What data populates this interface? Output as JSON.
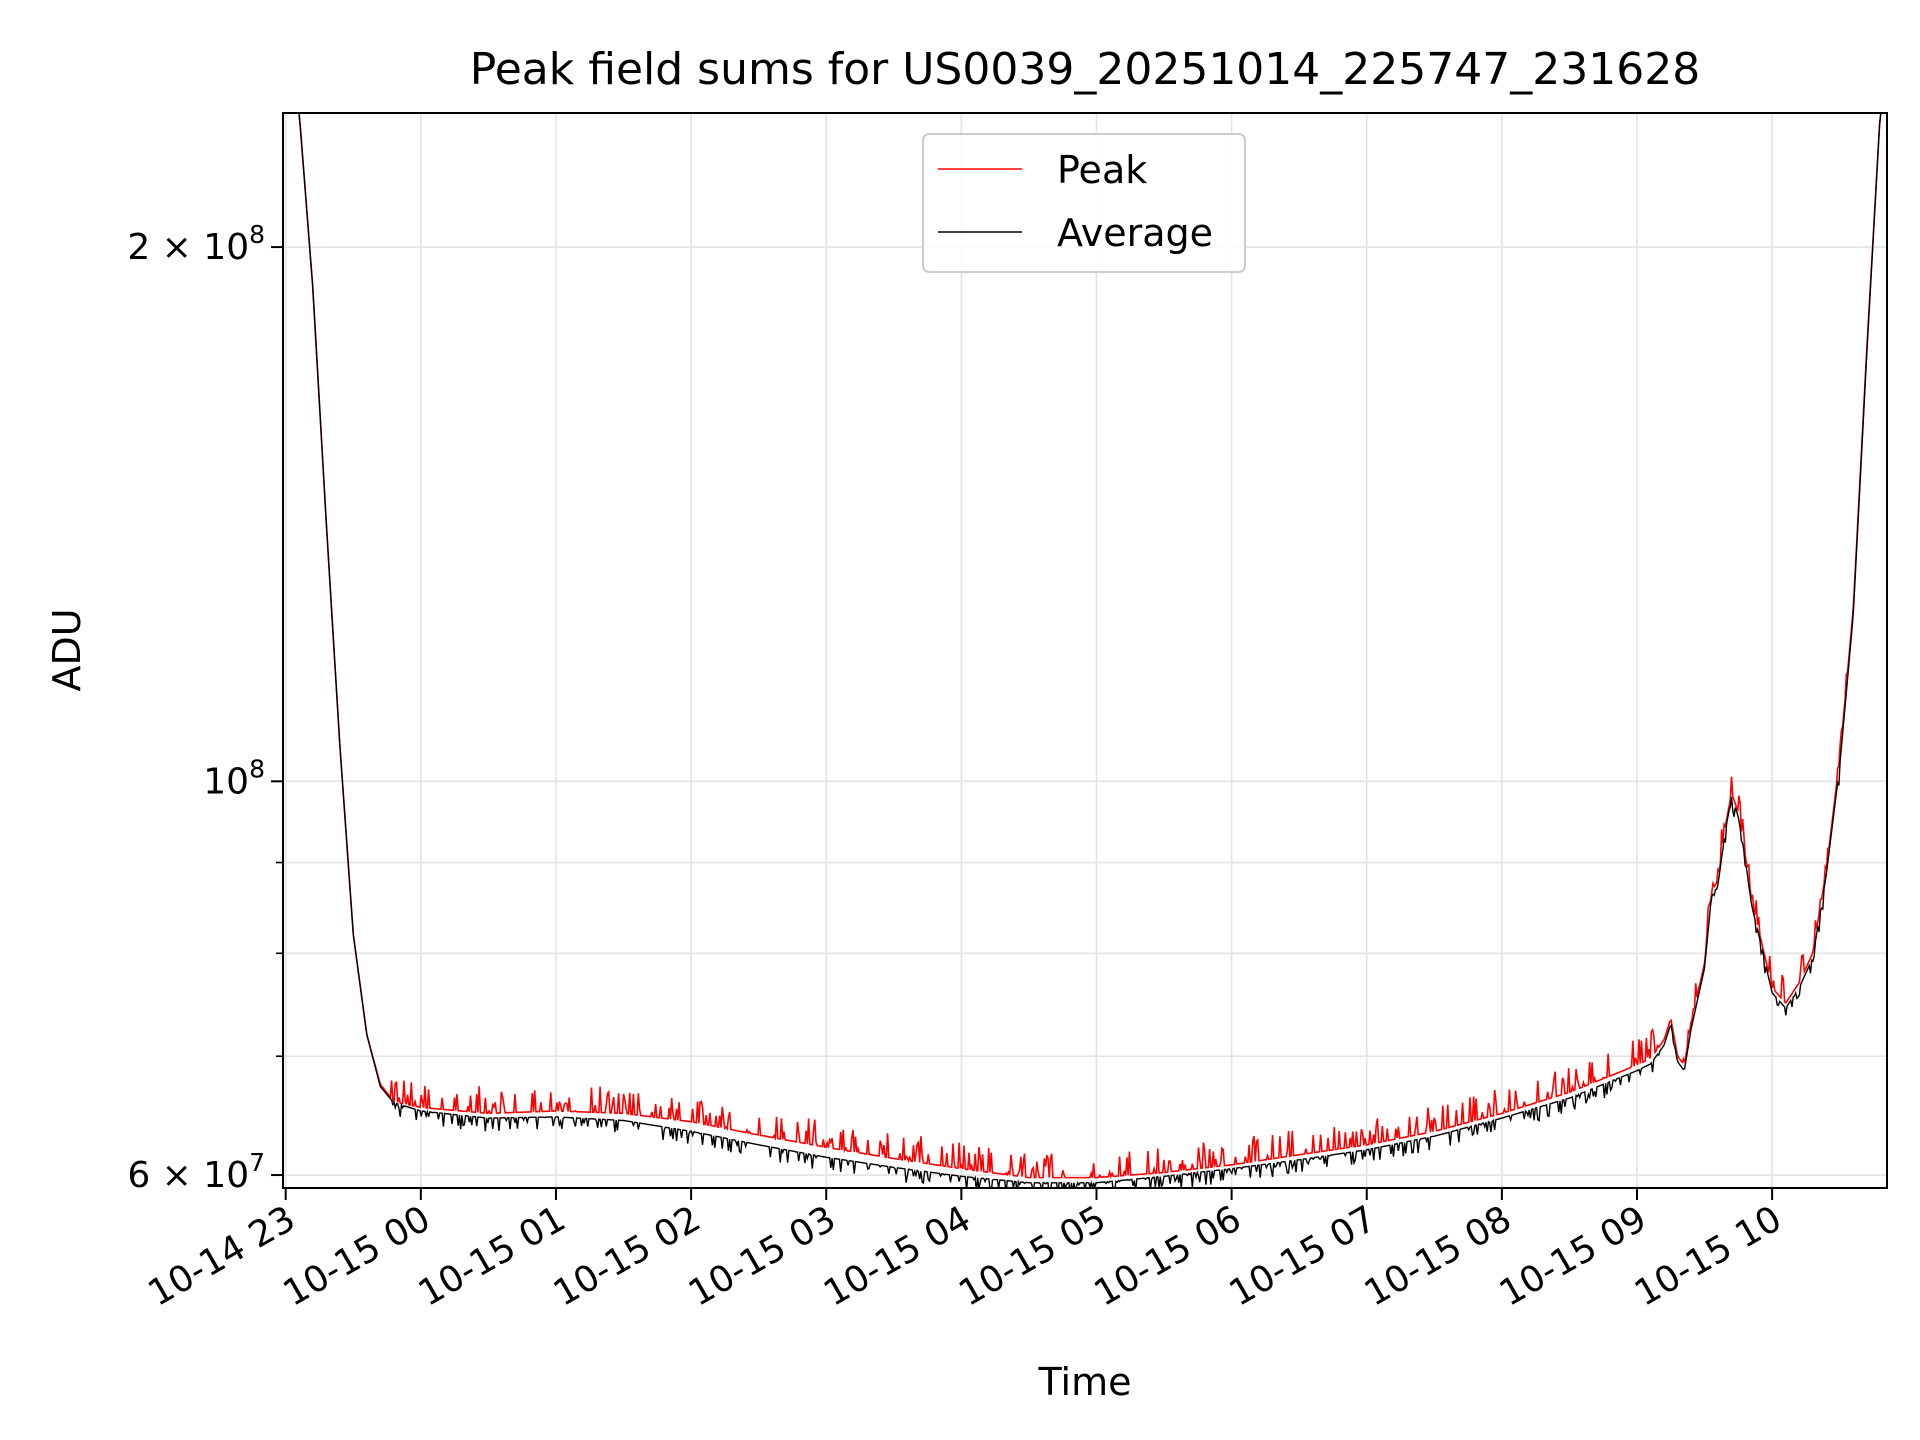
{
  "chart_data": {
    "type": "line",
    "title": "Peak field sums for US0039_20251014_225747_231628",
    "xlabel": "Time",
    "ylabel": "ADU",
    "yscale": "log",
    "ylim": [
      59000000,
      238000000
    ],
    "xlim_hours": [
      22.98,
      10.85
    ],
    "grid": true,
    "legend_position": "top-center",
    "x_ticks": [
      {
        "hour": 23,
        "label": "10-14 23"
      },
      {
        "hour": 24,
        "label": "10-15 00"
      },
      {
        "hour": 25,
        "label": "10-15 01"
      },
      {
        "hour": 26,
        "label": "10-15 02"
      },
      {
        "hour": 27,
        "label": "10-15 03"
      },
      {
        "hour": 28,
        "label": "10-15 04"
      },
      {
        "hour": 29,
        "label": "10-15 05"
      },
      {
        "hour": 30,
        "label": "10-15 06"
      },
      {
        "hour": 31,
        "label": "10-15 07"
      },
      {
        "hour": 32,
        "label": "10-15 08"
      },
      {
        "hour": 33,
        "label": "10-15 09"
      },
      {
        "hour": 34,
        "label": "10-15 10"
      }
    ],
    "y_major_ticks": [
      {
        "value": 60000000,
        "base": "6 × 10",
        "exp": "7"
      },
      {
        "value": 100000000,
        "base": "10",
        "exp": "8"
      },
      {
        "value": 200000000,
        "base": "2 × 10",
        "exp": "8"
      }
    ],
    "y_minor_ticks": [
      70000000,
      80000000,
      90000000
    ],
    "series": [
      {
        "name": "Peak",
        "color": "#ff0000",
        "noise": "upper",
        "x_hours": [
          22.98,
          23.1,
          23.2,
          23.3,
          23.4,
          23.5,
          23.6,
          23.7,
          23.8,
          24.0,
          24.5,
          25.0,
          25.5,
          26.0,
          26.5,
          27.0,
          27.5,
          28.0,
          28.5,
          29.0,
          29.5,
          30.0,
          30.5,
          31.0,
          31.5,
          32.0,
          32.5,
          33.0,
          33.1,
          33.2,
          33.25,
          33.3,
          33.35,
          33.4,
          33.5,
          33.55,
          33.6,
          33.65,
          33.7,
          33.75,
          33.8,
          33.85,
          33.9,
          34.0,
          34.1,
          34.2,
          34.3,
          34.4,
          34.5,
          34.6,
          34.7,
          34.8,
          34.85
        ],
        "values": [
          238000000,
          238000000,
          190000000,
          140000000,
          105000000,
          82000000,
          72000000,
          67500000,
          66000000,
          65500000,
          65000000,
          65200000,
          65000000,
          64300000,
          63200000,
          62200000,
          61300000,
          60500000,
          59800000,
          59800000,
          60200000,
          60800000,
          61600000,
          62400000,
          63500000,
          65000000,
          66800000,
          69200000,
          69800000,
          71500000,
          73500000,
          70000000,
          69200000,
          73000000,
          79000000,
          86500000,
          88000000,
          94000000,
          98500000,
          96000000,
          91000000,
          85500000,
          82500000,
          76500000,
          75000000,
          77000000,
          80000000,
          89000000,
          103000000,
          125000000,
          175000000,
          238000000,
          238000000
        ]
      },
      {
        "name": "Average",
        "color": "#000000",
        "noise": "lower",
        "x_hours": [
          22.98,
          23.1,
          23.2,
          23.3,
          23.4,
          23.5,
          23.6,
          23.7,
          23.8,
          24.0,
          24.5,
          25.0,
          25.5,
          26.0,
          26.5,
          27.0,
          27.5,
          28.0,
          28.5,
          29.0,
          29.5,
          30.0,
          30.5,
          31.0,
          31.5,
          32.0,
          32.5,
          33.0,
          33.1,
          33.2,
          33.25,
          33.3,
          33.35,
          33.4,
          33.5,
          33.55,
          33.6,
          33.65,
          33.7,
          33.75,
          33.8,
          33.85,
          33.9,
          34.0,
          34.1,
          34.2,
          34.3,
          34.4,
          34.5,
          34.6,
          34.7,
          34.8,
          34.85
        ],
        "values": [
          238000000,
          238000000,
          190000000,
          140000000,
          105000000,
          82000000,
          72000000,
          67300000,
          65900000,
          65200000,
          64600000,
          64700000,
          64400000,
          63500000,
          62400000,
          61400000,
          60600000,
          59900000,
          59400000,
          59400000,
          59900000,
          60500000,
          61200000,
          62000000,
          63100000,
          64600000,
          66300000,
          68700000,
          69300000,
          71000000,
          73000000,
          69500000,
          68700000,
          72500000,
          78500000,
          86000000,
          87500000,
          93500000,
          98000000,
          95500000,
          90500000,
          85000000,
          82000000,
          76000000,
          74500000,
          76500000,
          79500000,
          88500000,
          102000000,
          124000000,
          174000000,
          238000000,
          238000000
        ]
      }
    ]
  }
}
